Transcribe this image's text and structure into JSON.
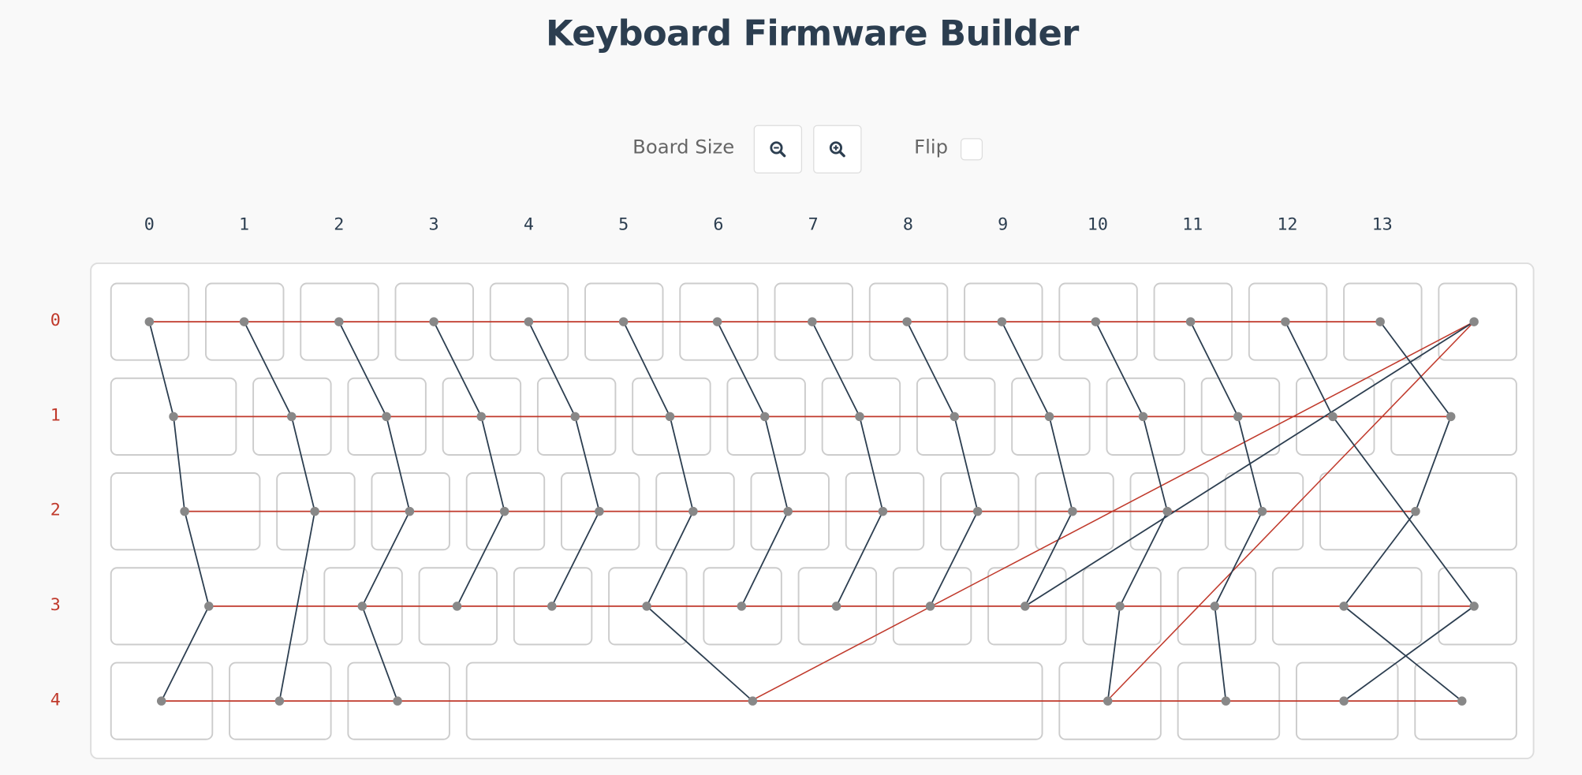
{
  "title": "Keyboard Firmware Builder",
  "controls": {
    "board_size_label": "Board Size",
    "zoom_out_icon": "zoom-out-icon",
    "zoom_in_icon": "zoom-in-icon",
    "flip_label": "Flip",
    "flip_checked": false
  },
  "column_labels": [
    "0",
    "1",
    "2",
    "3",
    "4",
    "5",
    "6",
    "7",
    "8",
    "9",
    "10",
    "11",
    "12",
    "13"
  ],
  "row_labels": [
    "0",
    "1",
    "2",
    "3",
    "4"
  ],
  "colors": {
    "row_wire": "#c0392b",
    "col_wire": "#2c3e50",
    "node": "#888888",
    "key_border": "#cccccc"
  }
}
